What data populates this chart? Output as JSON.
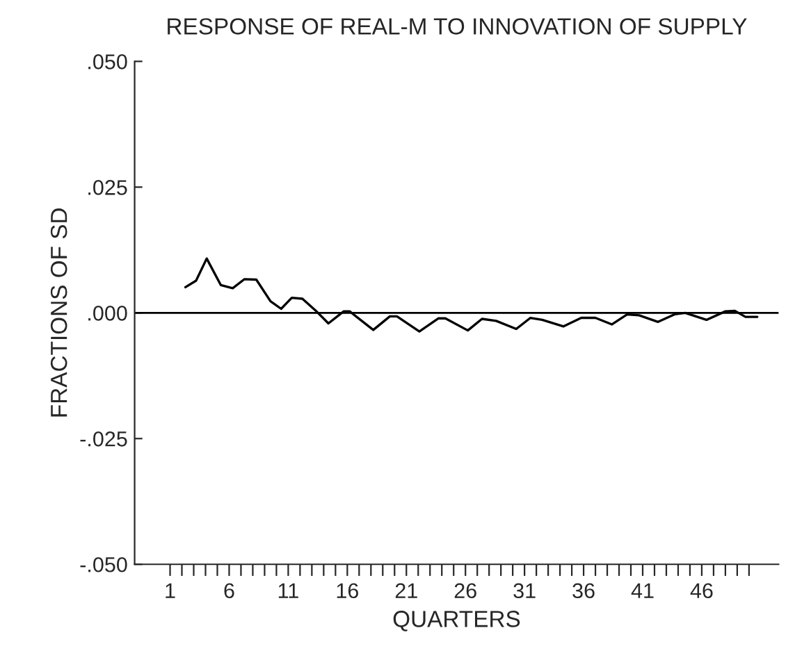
{
  "chart_data": {
    "type": "line",
    "title": "RESPONSE OF REAL-M TO INNOVATION OF SUPPLY",
    "xlabel": "QUARTERS",
    "ylabel": "FRACTIONS OF SD",
    "x": [
      2.3,
      3.2,
      4.1,
      5.3,
      6.3,
      7.3,
      8.3,
      9.5,
      10.4,
      11.3,
      12.2,
      13.3,
      14.4,
      15.7,
      16.2,
      18.2,
      19.6,
      20.2,
      22.1,
      23.7,
      24.3,
      26.2,
      27.4,
      28.6,
      30.3,
      31.5,
      32.5,
      34.3,
      35.8,
      37.0,
      38.4,
      39.7,
      40.7,
      42.3,
      43.7,
      44.6,
      46.4,
      48.0,
      48.8,
      49.7,
      50.7
    ],
    "series": [
      {
        "color": "#000000",
        "values": [
          0.0051,
          0.0064,
          0.0108,
          0.0055,
          0.0049,
          0.0067,
          0.0066,
          0.0023,
          0.0008,
          0.003,
          0.0028,
          0.0005,
          -0.0021,
          0.0003,
          0.0003,
          -0.0034,
          -0.0007,
          -0.0007,
          -0.0037,
          -0.0011,
          -0.0011,
          -0.0035,
          -0.0012,
          -0.0016,
          -0.0032,
          -0.001,
          -0.0014,
          -0.0027,
          -0.001,
          -0.001,
          -0.0023,
          -0.0003,
          -0.0005,
          -0.0018,
          -0.0003,
          0.0,
          -0.0014,
          0.0003,
          0.0004,
          -0.0008,
          -0.0008
        ]
      }
    ],
    "xlim": [
      -2,
      52.5
    ],
    "ylim": [
      -0.05,
      0.05
    ],
    "xticks": [
      1,
      {
        "value": 2,
        "label": null
      },
      {
        "value": 3,
        "label": null
      },
      {
        "value": 4,
        "label": null
      },
      {
        "value": 5,
        "label": null
      },
      6,
      {
        "value": 7,
        "label": null
      },
      {
        "value": 8,
        "label": null
      },
      {
        "value": 9,
        "label": null
      },
      {
        "value": 10,
        "label": null
      },
      11,
      {
        "value": 12,
        "label": null
      },
      {
        "value": 13,
        "label": null
      },
      {
        "value": 14,
        "label": null
      },
      {
        "value": 15,
        "label": null
      },
      16,
      {
        "value": 17,
        "label": null
      },
      {
        "value": 18,
        "label": null
      },
      {
        "value": 19,
        "label": null
      },
      {
        "value": 20,
        "label": null
      },
      21,
      {
        "value": 22,
        "label": null
      },
      {
        "value": 23,
        "label": null
      },
      {
        "value": 24,
        "label": null
      },
      {
        "value": 25,
        "label": null
      },
      26,
      {
        "value": 27,
        "label": null
      },
      {
        "value": 28,
        "label": null
      },
      {
        "value": 29,
        "label": null
      },
      {
        "value": 30,
        "label": null
      },
      31,
      {
        "value": 32,
        "label": null
      },
      {
        "value": 33,
        "label": null
      },
      {
        "value": 34,
        "label": null
      },
      {
        "value": 35,
        "label": null
      },
      36,
      {
        "value": 37,
        "label": null
      },
      {
        "value": 38,
        "label": null
      },
      {
        "value": 39,
        "label": null
      },
      {
        "value": 40,
        "label": null
      },
      41,
      {
        "value": 42,
        "label": null
      },
      {
        "value": 43,
        "label": null
      },
      {
        "value": 44,
        "label": null
      },
      {
        "value": 45,
        "label": null
      },
      46,
      {
        "value": 47,
        "label": null
      },
      {
        "value": 48,
        "label": null
      },
      {
        "value": 49,
        "label": null
      },
      {
        "value": 50,
        "label": null
      }
    ],
    "yticks": [
      {
        "value": 0.05,
        "label": ".050"
      },
      {
        "value": 0.025,
        "label": ".025"
      },
      {
        "value": 0,
        "label": ".000"
      },
      {
        "value": -0.025,
        "label": "-.025"
      },
      {
        "value": -0.05,
        "label": "-.050"
      }
    ],
    "ref_lines": [
      {
        "axis": "y",
        "value": 0,
        "color": "#000000"
      }
    ],
    "grid": false,
    "marker": "none",
    "line_style": "solid"
  }
}
